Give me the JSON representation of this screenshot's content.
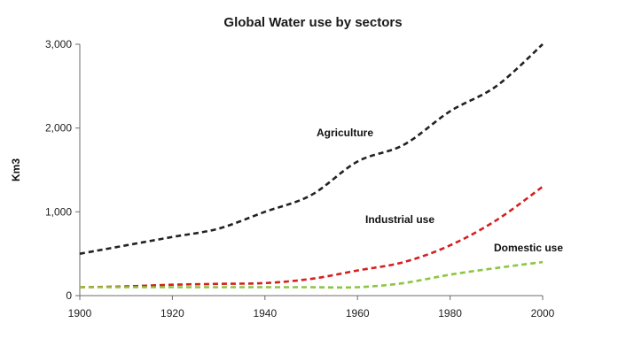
{
  "chart_data": {
    "type": "line",
    "title": "Global Water use by sectors",
    "xlabel": "",
    "ylabel": "Km3",
    "xlim": [
      1900,
      2000
    ],
    "ylim": [
      0,
      3000
    ],
    "x_ticks": [
      1900,
      1920,
      1940,
      1960,
      1980,
      2000
    ],
    "y_ticks": [
      0,
      1000,
      2000,
      3000
    ],
    "y_tick_labels": [
      "0",
      "1,000",
      "2,000",
      "3,000"
    ],
    "grid": false,
    "legend": "inline labels",
    "series": [
      {
        "name": "Agriculture",
        "color": "#222222",
        "x": [
          1900,
          1910,
          1920,
          1930,
          1940,
          1950,
          1960,
          1970,
          1980,
          1990,
          2000
        ],
        "y": [
          500,
          600,
          700,
          800,
          1000,
          1200,
          1600,
          1800,
          2200,
          2500,
          3000
        ]
      },
      {
        "name": "Industrial use",
        "color": "#d42020",
        "x": [
          1900,
          1910,
          1920,
          1930,
          1940,
          1950,
          1960,
          1970,
          1980,
          1990,
          2000
        ],
        "y": [
          100,
          110,
          130,
          140,
          150,
          200,
          300,
          400,
          600,
          900,
          1300
        ]
      },
      {
        "name": "Domestic use",
        "color": "#8cc640",
        "x": [
          1900,
          1910,
          1920,
          1930,
          1940,
          1950,
          1960,
          1970,
          1980,
          1990,
          2000
        ],
        "y": [
          100,
          100,
          100,
          100,
          100,
          100,
          100,
          150,
          250,
          330,
          400
        ]
      }
    ]
  }
}
